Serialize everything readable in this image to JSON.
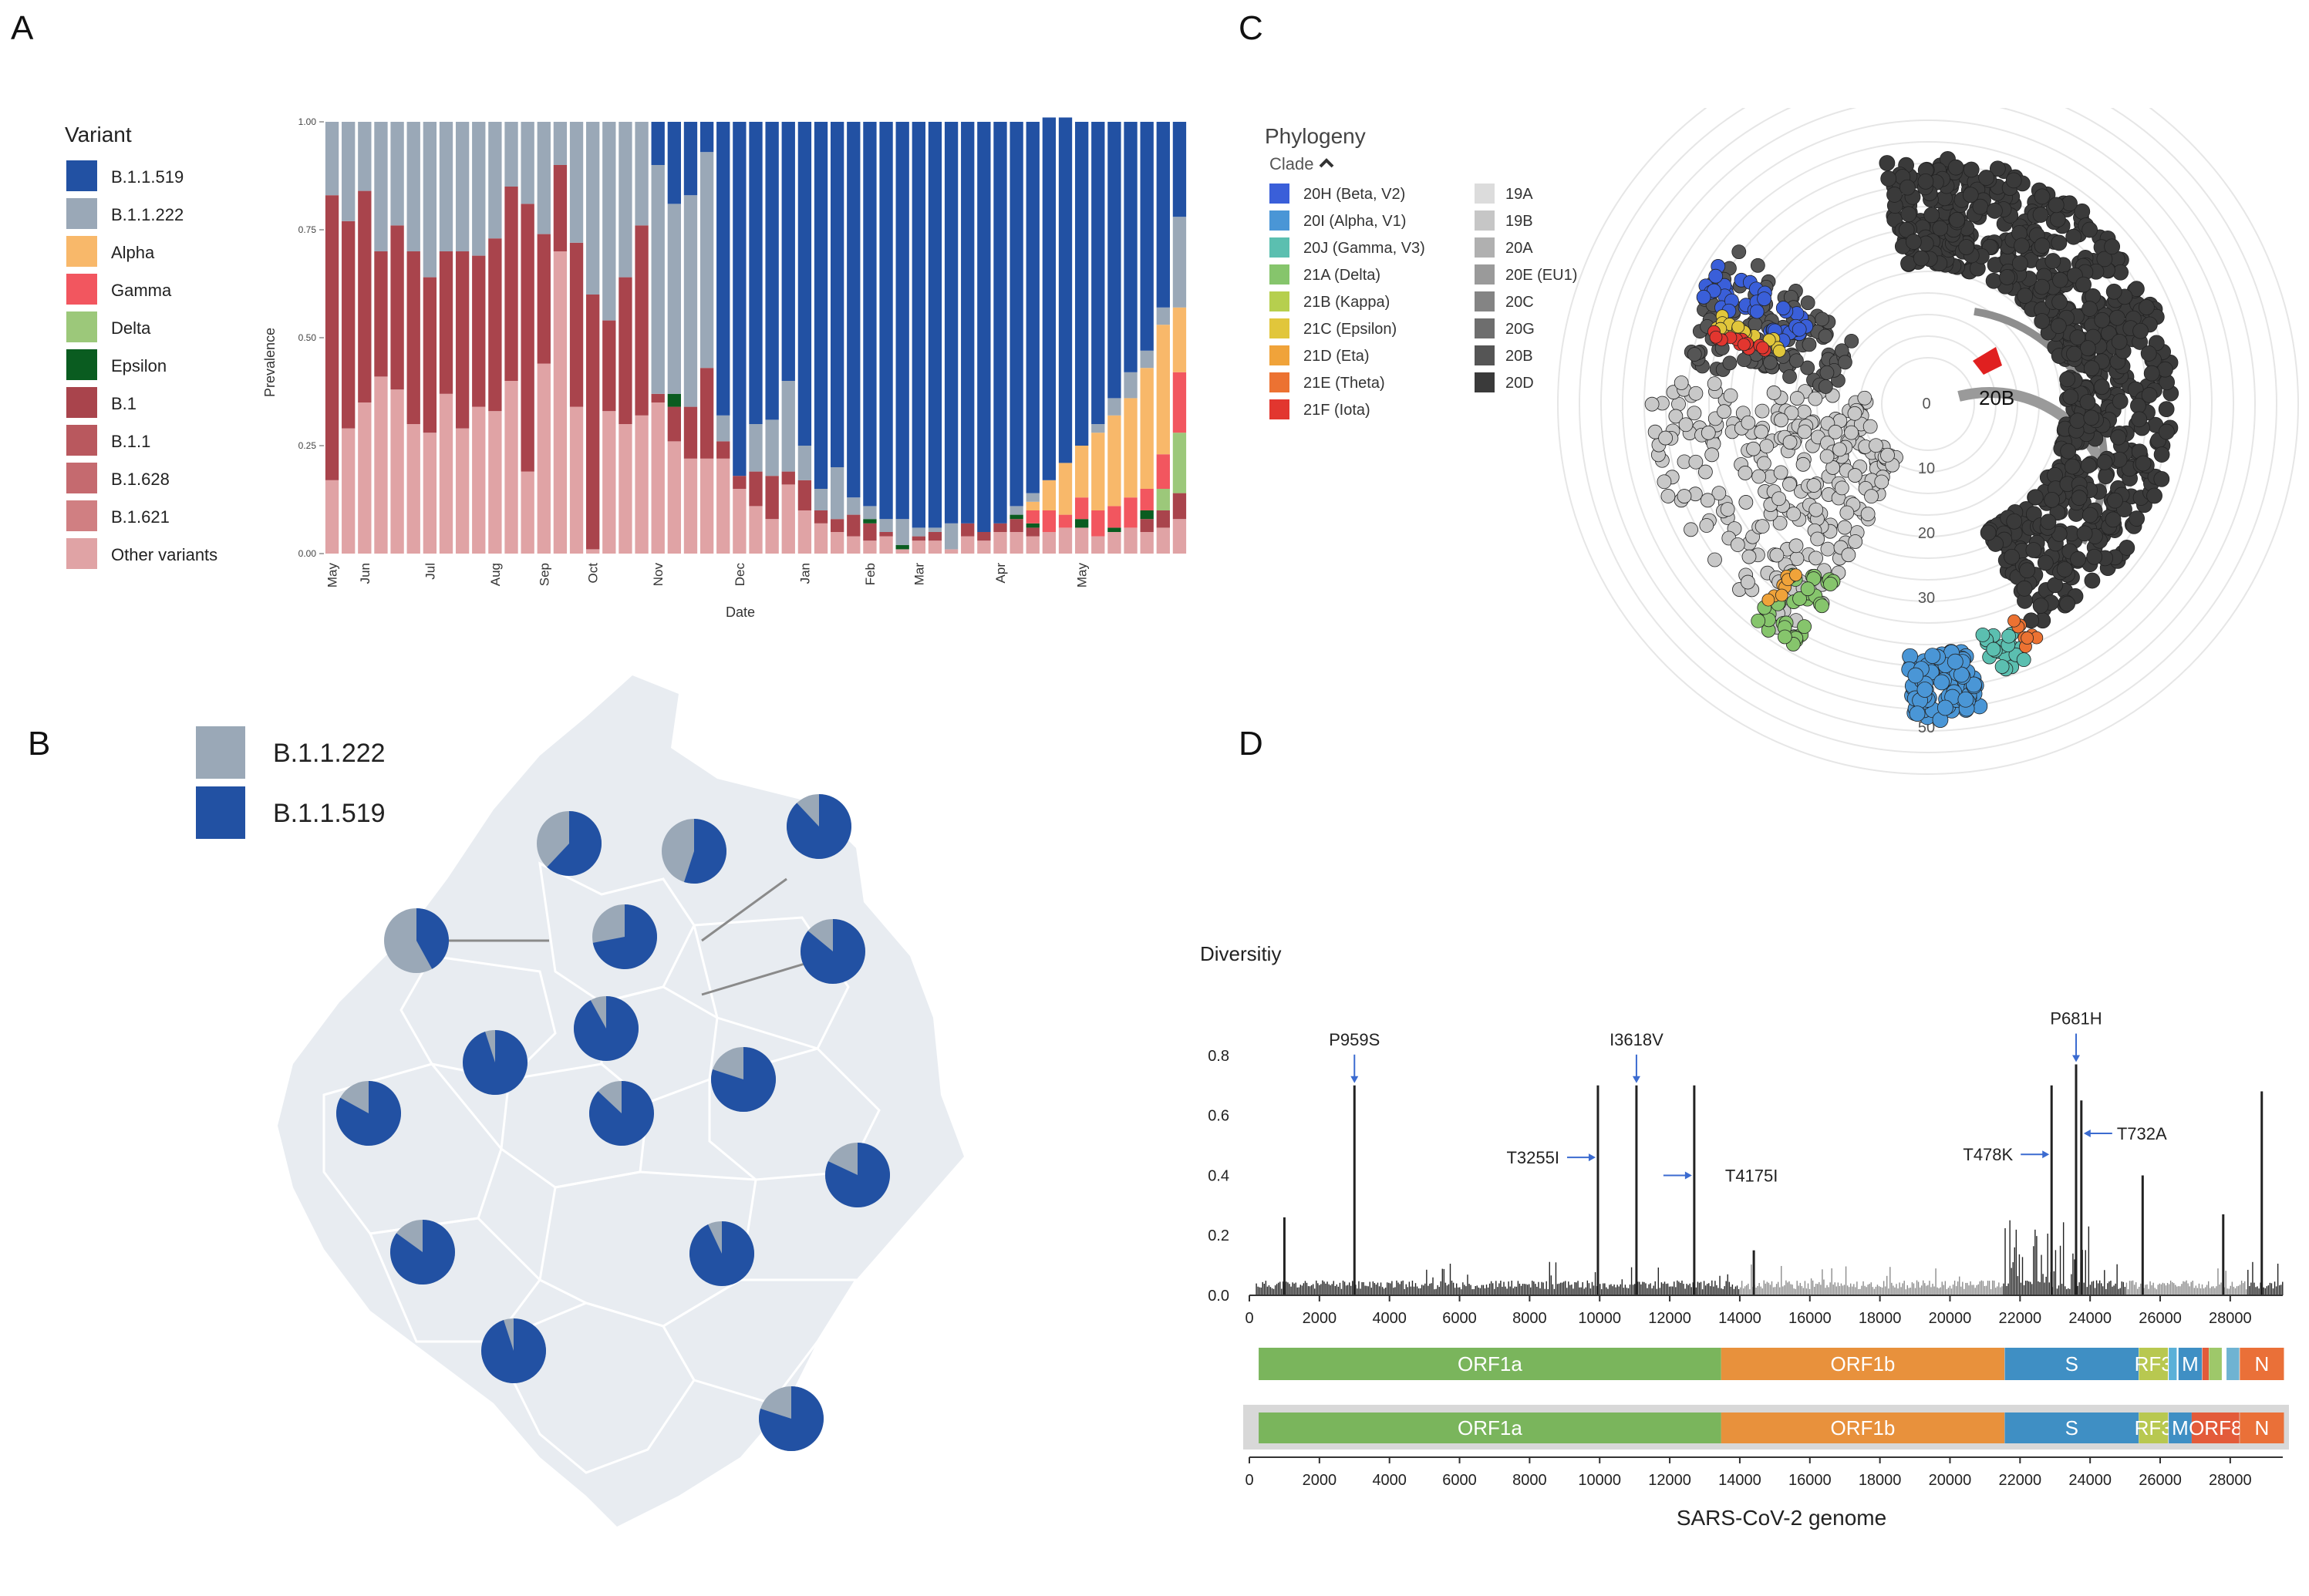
{
  "panels": {
    "a": "A",
    "b": "B",
    "c": "C",
    "d": "D"
  },
  "colors": {
    "b1519": "#2251a3",
    "b1222": "#9aa8b7",
    "alpha": "#f8b86a",
    "gamma": "#f2565f",
    "delta": "#9cc87a",
    "epsilon": "#0a5c20",
    "b1": "#a9444c",
    "b11": "#b9585e",
    "b1628": "#c56a6f",
    "b1621": "#d07f82",
    "other": "#e0a3a5",
    "map_fill": "#e8ecf1"
  },
  "chart_data": [
    {
      "type": "bar",
      "title": "",
      "xlabel": "Date",
      "ylabel": "Prevalence",
      "ylim": [
        0,
        1
      ],
      "yticks": [
        "0.00",
        "0.25",
        "0.50",
        "0.75",
        "1.00"
      ],
      "month_labels": [
        {
          "label": "May",
          "bar": 0
        },
        {
          "label": "Jun",
          "bar": 2
        },
        {
          "label": "Jul",
          "bar": 6
        },
        {
          "label": "Aug",
          "bar": 10
        },
        {
          "label": "Sep",
          "bar": 13
        },
        {
          "label": "Oct",
          "bar": 16
        },
        {
          "label": "Nov",
          "bar": 20
        },
        {
          "label": "Dec",
          "bar": 25
        },
        {
          "label": "Jan",
          "bar": 29
        },
        {
          "label": "Feb",
          "bar": 33
        },
        {
          "label": "Mar",
          "bar": 36
        },
        {
          "label": "Apr",
          "bar": 41
        },
        {
          "label": "May",
          "bar": 46
        }
      ],
      "legend_title": "Variant",
      "legend": [
        {
          "key": "b1519",
          "label": "B.1.1.519"
        },
        {
          "key": "b1222",
          "label": "B.1.1.222"
        },
        {
          "key": "alpha",
          "label": "Alpha"
        },
        {
          "key": "gamma",
          "label": "Gamma"
        },
        {
          "key": "delta",
          "label": "Delta"
        },
        {
          "key": "epsilon",
          "label": "Epsilon"
        },
        {
          "key": "b1",
          "label": "B.1"
        },
        {
          "key": "b11",
          "label": "B.1.1"
        },
        {
          "key": "b1628",
          "label": "B.1.628"
        },
        {
          "key": "b1621",
          "label": "B.1.621"
        },
        {
          "key": "other",
          "label": "Other variants"
        }
      ],
      "stack_order": [
        "other",
        "b1621",
        "b1628",
        "b11",
        "b1",
        "epsilon",
        "delta",
        "gamma",
        "alpha",
        "b1222",
        "b1519"
      ],
      "bars": [
        {
          "other": 0.17,
          "b1": 0.66
        },
        {
          "other": 0.29,
          "b1": 0.48
        },
        {
          "other": 0.35,
          "b1": 0.49
        },
        {
          "other": 0.41,
          "b1": 0.29
        },
        {
          "other": 0.38,
          "b1": 0.38
        },
        {
          "other": 0.3,
          "b1": 0.4
        },
        {
          "other": 0.28,
          "b1": 0.36
        },
        {
          "other": 0.37,
          "b1": 0.33
        },
        {
          "other": 0.29,
          "b1": 0.41
        },
        {
          "other": 0.34,
          "b1": 0.35
        },
        {
          "other": 0.33,
          "b1": 0.4
        },
        {
          "other": 0.4,
          "b1": 0.45
        },
        {
          "other": 0.19,
          "b1": 0.62
        },
        {
          "other": 0.44,
          "b1": 0.3
        },
        {
          "other": 0.7,
          "b1": 0.2
        },
        {
          "other": 0.34,
          "b1": 0.38
        },
        {
          "other": 0.01,
          "b1": 0.59
        },
        {
          "other": 0.33,
          "b1": 0.21
        },
        {
          "other": 0.3,
          "b1": 0.34
        },
        {
          "other": 0.32,
          "b1": 0.44
        },
        {
          "other": 0.35,
          "b1": 0.02,
          "b1519": 0.1
        },
        {
          "other": 0.26,
          "b1": 0.08,
          "epsilon": 0.03,
          "b1519": 0.19
        },
        {
          "other": 0.22,
          "b1": 0.12,
          "b1519": 0.17
        },
        {
          "other": 0.22,
          "b1": 0.21,
          "b1519": 0.07
        },
        {
          "other": 0.22,
          "b1": 0.04,
          "b1519": 0.68
        },
        {
          "other": 0.15,
          "b1": 0.03,
          "b1519": 0.82
        },
        {
          "other": 0.11,
          "b1": 0.08,
          "b1519": 0.7
        },
        {
          "other": 0.08,
          "b1": 0.1,
          "b1519": 0.69
        },
        {
          "other": 0.16,
          "b1": 0.03,
          "b1519": 0.6
        },
        {
          "other": 0.1,
          "b1": 0.07,
          "b1519": 0.75
        },
        {
          "other": 0.07,
          "b1": 0.03,
          "b1519": 0.85
        },
        {
          "other": 0.05,
          "b1": 0.03,
          "b1519": 0.8
        },
        {
          "other": 0.04,
          "b1": 0.05,
          "b1519": 0.87
        },
        {
          "other": 0.03,
          "epsilon": 0.01,
          "b1": 0.04,
          "b1519": 0.89
        },
        {
          "other": 0.04,
          "b1": 0.01,
          "b1519": 0.92
        },
        {
          "other": 0.01,
          "epsilon": 0.01,
          "b1519": 0.92
        },
        {
          "other": 0.03,
          "b1": 0.01,
          "b1519": 0.94
        },
        {
          "other": 0.03,
          "b1": 0.02,
          "b1519": 0.94
        },
        {
          "other": 0.01,
          "b1519": 0.93
        },
        {
          "other": 0.04,
          "b1": 0.03,
          "b1519": 0.93
        },
        {
          "other": 0.03,
          "b1": 0.02,
          "b1519": 0.95
        },
        {
          "other": 0.05,
          "b1": 0.02,
          "b1519": 0.93
        },
        {
          "other": 0.05,
          "b1": 0.03,
          "epsilon": 0.01,
          "b1519": 0.89
        },
        {
          "other": 0.04,
          "gamma": 0.03,
          "b1": 0.02,
          "epsilon": 0.01,
          "alpha": 0.02,
          "b1519": 0.86
        },
        {
          "other": 0.05,
          "gamma": 0.05,
          "alpha": 0.07,
          "b1519": 0.84
        },
        {
          "other": 0.06,
          "gamma": 0.03,
          "alpha": 0.12,
          "b1519": 0.8
        },
        {
          "other": 0.06,
          "gamma": 0.05,
          "epsilon": 0.02,
          "alpha": 0.12,
          "b1519": 0.75
        },
        {
          "other": 0.04,
          "gamma": 0.06,
          "alpha": 0.18,
          "b1519": 0.7
        },
        {
          "other": 0.05,
          "gamma": 0.05,
          "epsilon": 0.01,
          "alpha": 0.21,
          "b1519": 0.64
        },
        {
          "other": 0.06,
          "gamma": 0.07,
          "alpha": 0.23,
          "b1519": 0.58
        },
        {
          "other": 0.05,
          "b1": 0.03,
          "gamma": 0.05,
          "epsilon": 0.02,
          "alpha": 0.28,
          "b1519": 0.53
        },
        {
          "other": 0.06,
          "b1": 0.04,
          "gamma": 0.08,
          "delta": 0.05,
          "alpha": 0.3,
          "b1519": 0.43
        },
        {
          "other": 0.08,
          "b1": 0.06,
          "gamma": 0.14,
          "delta": 0.14,
          "alpha": 0.15,
          "b1519": 0.22
        }
      ]
    },
    {
      "type": "scatter",
      "title": "Phylogeny",
      "subtitle": "Clade",
      "radial_ticks": [
        "0",
        "10",
        "20",
        "30",
        "40",
        "50"
      ],
      "annotation": "20B",
      "legend_colored": [
        {
          "label": "20H (Beta, V2)",
          "color": "#3a5fd9"
        },
        {
          "label": "20I (Alpha, V1)",
          "color": "#4a96d6"
        },
        {
          "label": "20J (Gamma, V3)",
          "color": "#5bbfb0"
        },
        {
          "label": "21A (Delta)",
          "color": "#86c56c"
        },
        {
          "label": "21B (Kappa)",
          "color": "#b6cf4e"
        },
        {
          "label": "21C (Epsilon)",
          "color": "#e1c63b"
        },
        {
          "label": "21D (Eta)",
          "color": "#f0a33a"
        },
        {
          "label": "21E (Theta)",
          "color": "#ec7232"
        },
        {
          "label": "21F (Iota)",
          "color": "#e2362f"
        }
      ],
      "legend_gray": [
        {
          "label": "19A",
          "color": "#dcdcdc"
        },
        {
          "label": "19B",
          "color": "#c6c6c6"
        },
        {
          "label": "20A",
          "color": "#b0b0b0"
        },
        {
          "label": "20E (EU1)",
          "color": "#9a9a9a"
        },
        {
          "label": "20C",
          "color": "#848484"
        },
        {
          "label": "20G",
          "color": "#6e6e6e"
        },
        {
          "label": "20B",
          "color": "#555555"
        },
        {
          "label": "20D",
          "color": "#3a3a3a"
        }
      ]
    },
    {
      "type": "line",
      "title": "Diversitiy",
      "xlabel": "SARS-CoV-2 genome",
      "xlim": [
        0,
        29500
      ],
      "ylim": [
        0,
        0.9
      ],
      "xticks": [
        "0",
        "2000",
        "4000",
        "6000",
        "8000",
        "10000",
        "12000",
        "14000",
        "16000",
        "18000",
        "20000",
        "22000",
        "24000",
        "26000",
        "28000"
      ],
      "yticks": [
        "0.0",
        "0.2",
        "0.4",
        "0.6",
        "0.8"
      ],
      "peaks": [
        {
          "x": 1000,
          "y": 0.26
        },
        {
          "x": 3000,
          "y": 0.7
        },
        {
          "x": 9950,
          "y": 0.7
        },
        {
          "x": 11050,
          "y": 0.7
        },
        {
          "x": 12700,
          "y": 0.7
        },
        {
          "x": 14400,
          "y": 0.15
        },
        {
          "x": 22900,
          "y": 0.7
        },
        {
          "x": 23600,
          "y": 0.77
        },
        {
          "x": 23750,
          "y": 0.65
        },
        {
          "x": 25500,
          "y": 0.4
        },
        {
          "x": 27800,
          "y": 0.27
        },
        {
          "x": 28900,
          "y": 0.68
        }
      ],
      "mutations": [
        {
          "label": "P959S",
          "x": 3000,
          "y": 0.7,
          "dir": "down"
        },
        {
          "label": "I3618V",
          "x": 11050,
          "y": 0.7,
          "dir": "down"
        },
        {
          "label": "T3255I",
          "x": 9950,
          "y": 0.46,
          "dir": "left"
        },
        {
          "label": "T4175I",
          "x": 12700,
          "y": 0.4,
          "dir": "left"
        },
        {
          "label": "P681H",
          "x": 23600,
          "y": 0.77,
          "dir": "down"
        },
        {
          "label": "T478K",
          "x": 22900,
          "y": 0.47,
          "dir": "left"
        },
        {
          "label": "T732A",
          "x": 23750,
          "y": 0.54,
          "dir": "right"
        }
      ],
      "genes": [
        {
          "label": "ORF1a",
          "start": 266,
          "end": 13468,
          "color": "#7ab55c"
        },
        {
          "label": "ORF1b",
          "start": 13468,
          "end": 21555,
          "color": "#e8913c"
        },
        {
          "label": "S",
          "start": 21563,
          "end": 25384,
          "color": "#3f8fc4"
        },
        {
          "label": "RF3",
          "start": 25393,
          "end": 26220,
          "color": "#b8c850"
        },
        {
          "label": "",
          "start": 26245,
          "end": 26472,
          "color": "#5ab0d8"
        },
        {
          "label": "M",
          "start": 26523,
          "end": 27191,
          "color": "#3f8fc4"
        },
        {
          "label": "",
          "start": 27202,
          "end": 27387,
          "color": "#e35b3a"
        },
        {
          "label": "",
          "start": 27394,
          "end": 27759,
          "color": "#9ec86a"
        },
        {
          "label": "",
          "start": 27894,
          "end": 28259,
          "color": "#6fb3d2"
        },
        {
          "label": "N",
          "start": 28274,
          "end": 29533,
          "color": "#ea7038"
        }
      ],
      "genes2": [
        {
          "label": "ORF1a",
          "start": 266,
          "end": 13468,
          "color": "#7ab55c"
        },
        {
          "label": "ORF1b",
          "start": 13468,
          "end": 21555,
          "color": "#e8913c"
        },
        {
          "label": "S",
          "start": 21563,
          "end": 25384,
          "color": "#3f8fc4"
        },
        {
          "label": "RF3",
          "start": 25393,
          "end": 26220,
          "color": "#b8c850"
        },
        {
          "label": "M",
          "start": 26245,
          "end": 26900,
          "color": "#3f8fc4"
        },
        {
          "label": "ORF8",
          "start": 26900,
          "end": 28259,
          "color": "#e35b3a"
        },
        {
          "label": "N",
          "start": 28274,
          "end": 29533,
          "color": "#ea7038"
        }
      ]
    },
    {
      "type": "pie",
      "title": "",
      "legend": [
        {
          "key": "b1222",
          "label": "B.1.1.222"
        },
        {
          "key": "b1519",
          "label": "B.1.1.519"
        }
      ],
      "pies": [
        {
          "b1519": 0.62,
          "b1222": 0.38
        },
        {
          "b1519": 0.55,
          "b1222": 0.45
        },
        {
          "b1519": 0.88,
          "b1222": 0.12
        },
        {
          "b1519": 0.42,
          "b1222": 0.58
        },
        {
          "b1519": 0.72,
          "b1222": 0.28
        },
        {
          "b1519": 0.86,
          "b1222": 0.14
        },
        {
          "b1519": 0.92,
          "b1222": 0.08
        },
        {
          "b1519": 0.95,
          "b1222": 0.05
        },
        {
          "b1519": 0.8,
          "b1222": 0.2
        },
        {
          "b1519": 0.87,
          "b1222": 0.13
        },
        {
          "b1519": 0.83,
          "b1222": 0.17
        },
        {
          "b1519": 0.82,
          "b1222": 0.18
        },
        {
          "b1519": 0.85,
          "b1222": 0.15
        },
        {
          "b1519": 0.93,
          "b1222": 0.07
        },
        {
          "b1519": 0.95,
          "b1222": 0.05
        },
        {
          "b1519": 0.8,
          "b1222": 0.2
        }
      ]
    }
  ]
}
